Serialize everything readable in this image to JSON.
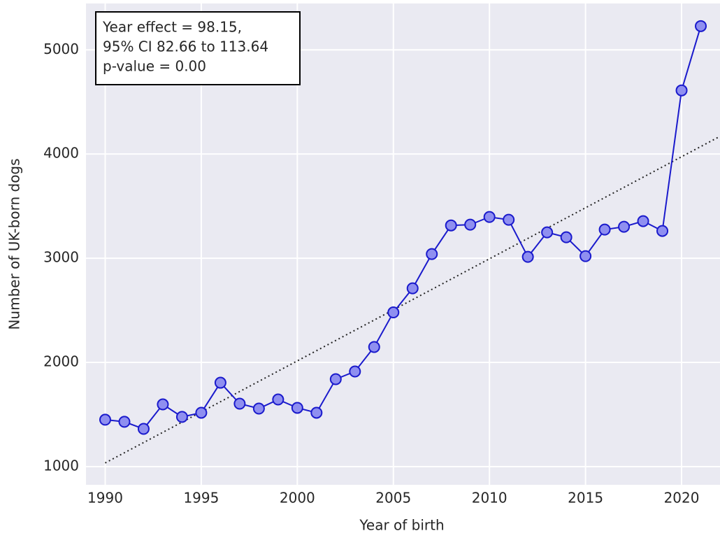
{
  "chart_data": {
    "type": "line",
    "xlabel": "Year of birth",
    "ylabel": "Number of UK-born dogs",
    "annotation": [
      "Year effect = 98.15,",
      "95% CI 82.66 to 113.64",
      "p-value = 0.00"
    ],
    "x": [
      1990,
      1991,
      1992,
      1993,
      1994,
      1995,
      1996,
      1997,
      1998,
      1999,
      2000,
      2001,
      2002,
      2003,
      2004,
      2005,
      2006,
      2007,
      2008,
      2009,
      2010,
      2011,
      2012,
      2013,
      2014,
      2015,
      2016,
      2017,
      2018,
      2019,
      2020,
      2021
    ],
    "series": [
      {
        "color": "#1a1acc",
        "marker_color": "#8f8ff0",
        "values": [
          1450,
          1430,
          1362,
          1597,
          1477,
          1517,
          1805,
          1604,
          1557,
          1644,
          1564,
          1517,
          1839,
          1913,
          2148,
          2480,
          2711,
          3040,
          3315,
          3322,
          3396,
          3369,
          3013,
          3248,
          3201,
          3020,
          3275,
          3302,
          3356,
          3262,
          4611,
          5228
        ]
      }
    ],
    "trend": {
      "x": [
        1990,
        2022
      ],
      "values": [
        1035,
        4170
      ],
      "color": "#222222"
    },
    "xlim": [
      1989,
      2022
    ],
    "ylim": [
      825,
      5445
    ],
    "xticks": [
      1990,
      1995,
      2000,
      2005,
      2010,
      2015,
      2020
    ],
    "yticks": [
      1000,
      2000,
      3000,
      4000,
      5000
    ],
    "grid": true,
    "background": "#eaeaf2"
  }
}
